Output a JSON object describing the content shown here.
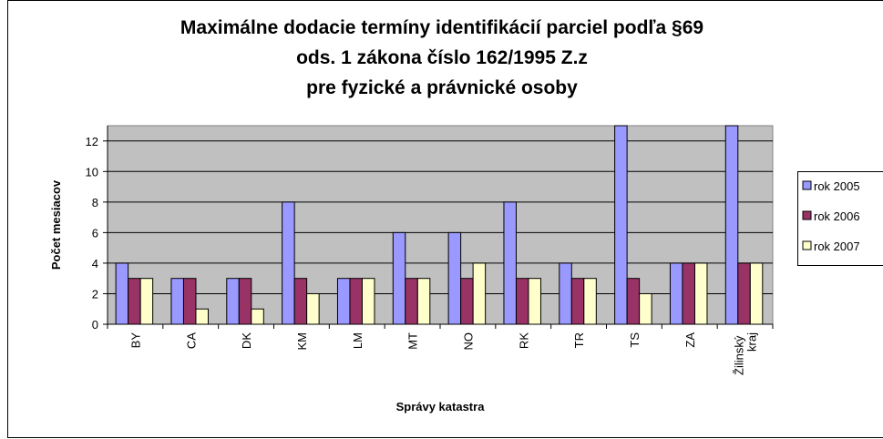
{
  "chart_data": {
    "type": "bar",
    "title": [
      "Maximálne dodacie termíny identifikácií parciel podľa §69",
      "ods. 1 zákona číslo 162/1995 Z.z",
      "pre fyzické a právnické osoby"
    ],
    "x_label": "Správy katastra",
    "y_label": "Počet mesiacov",
    "categories": [
      "BY",
      "CA",
      "DK",
      "KM",
      "LM",
      "MT",
      "NO",
      "RK",
      "TR",
      "TS",
      "ZA",
      "Žilinský kraj"
    ],
    "series": [
      {
        "name": "rok 2005",
        "color": "#9999ff",
        "values": [
          4,
          3,
          3,
          8,
          3,
          6,
          6,
          8,
          4,
          13,
          4,
          13
        ]
      },
      {
        "name": "rok 2006",
        "color": "#993366",
        "values": [
          3,
          3,
          3,
          3,
          3,
          3,
          3,
          3,
          3,
          3,
          4,
          4
        ]
      },
      {
        "name": "rok 2007",
        "color": "#ffffcc",
        "values": [
          3,
          1,
          1,
          2,
          3,
          3,
          4,
          3,
          3,
          2,
          4,
          4
        ]
      }
    ],
    "ylim": [
      0,
      13
    ],
    "yticks": [
      0,
      2,
      4,
      6,
      8,
      10,
      12
    ],
    "grid": true,
    "legend": "right"
  }
}
